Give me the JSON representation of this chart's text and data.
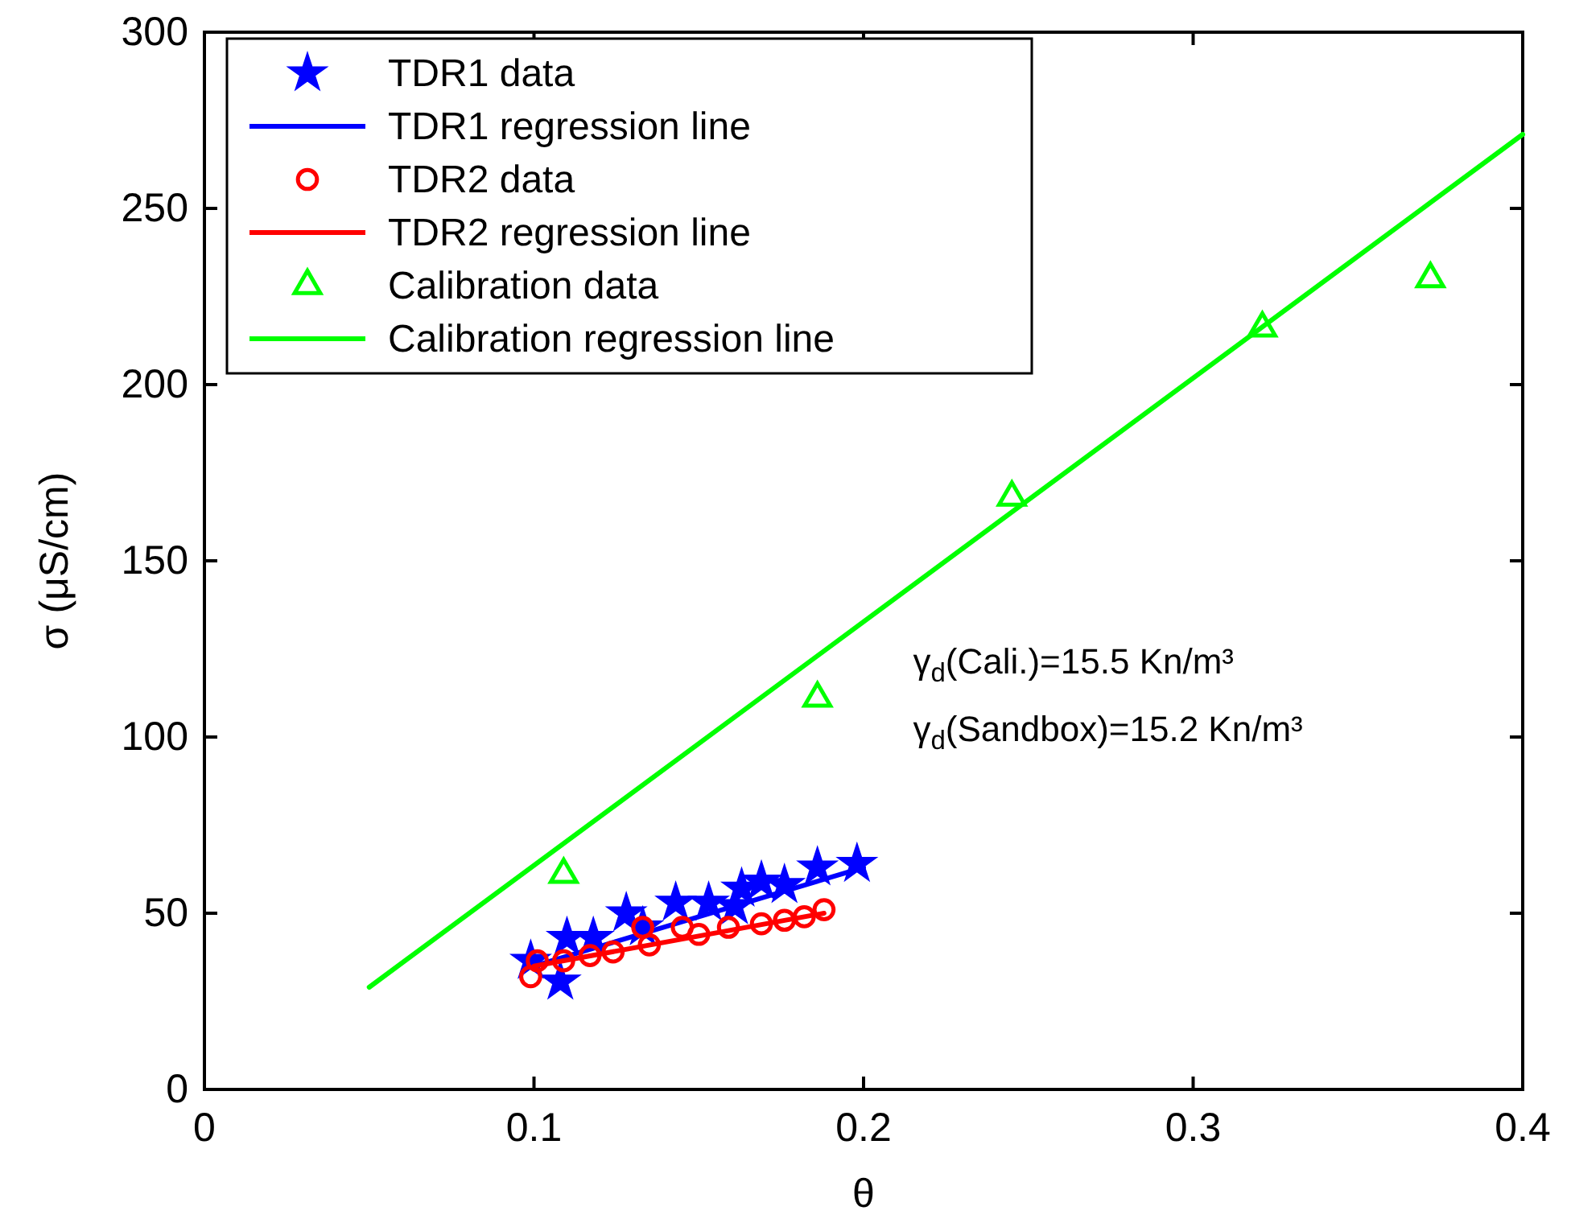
{
  "chart_data": {
    "type": "scatter",
    "xlabel": "θ",
    "ylabel": "σ (μS/cm)",
    "xlim": [
      0,
      0.4
    ],
    "xticks": [
      0,
      0.1,
      0.2,
      0.3,
      0.4
    ],
    "ylim": [
      0,
      300
    ],
    "yticks": [
      0,
      50,
      100,
      150,
      200,
      250,
      300
    ],
    "legend": "top left",
    "annotations": [
      "γ$_{d}$(Cali.)=15.5 Kn/m³",
      "γ$_{d}$(Sandbox)=15.2 Kn/m³"
    ],
    "series": [
      {
        "name": "TDR1 data",
        "marker": "star",
        "color": "#0000ff",
        "x": [
          0.099,
          0.108,
          0.11,
          0.118,
          0.128,
          0.133,
          0.143,
          0.153,
          0.161,
          0.163,
          0.169,
          0.176,
          0.186,
          0.198
        ],
        "values": [
          36.5,
          30.6,
          43,
          43,
          50,
          46,
          53,
          53,
          52,
          57,
          59,
          58,
          63,
          64
        ]
      },
      {
        "name": "TDR1 regression line",
        "type": "line",
        "marker": "none",
        "color": "#0000ff",
        "x": [
          0.1,
          0.2
        ],
        "values": [
          35,
          63
        ]
      },
      {
        "name": "TDR2 data",
        "marker": "circle",
        "color": "#ff0000",
        "x": [
          0.099,
          0.101,
          0.109,
          0.117,
          0.124,
          0.133,
          0.135,
          0.145,
          0.15,
          0.159,
          0.169,
          0.176,
          0.182,
          0.188
        ],
        "values": [
          32,
          36.5,
          36.5,
          38,
          39,
          46,
          41,
          46,
          44,
          46,
          47,
          48,
          49,
          51
        ]
      },
      {
        "name": "TDR2 regression line",
        "type": "line",
        "marker": "none",
        "color": "#ff0000",
        "x": [
          0.1,
          0.188
        ],
        "values": [
          35,
          50
        ]
      },
      {
        "name": "Calibration data",
        "marker": "triangle",
        "color": "#00ff00",
        "x": [
          0.109,
          0.186,
          0.245,
          0.321,
          0.372
        ],
        "values": [
          61,
          111,
          168,
          216,
          230
        ]
      },
      {
        "name": "Calibration regression line",
        "type": "line",
        "marker": "none",
        "color": "#00ff00",
        "x": [
          0.05,
          0.4
        ],
        "values": [
          29,
          271
        ]
      }
    ]
  }
}
